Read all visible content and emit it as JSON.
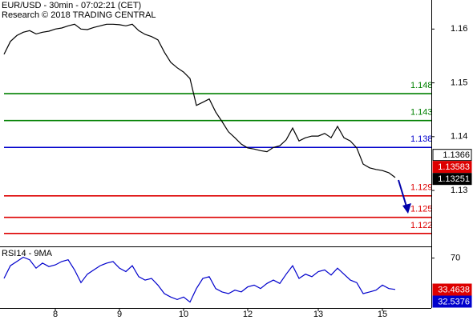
{
  "chart_data": [
    {
      "type": "line",
      "title": "EUR/USD - 30min - 07:02:21 (CET)",
      "subtitle": "Research © 2018 TRADING CENTRAL",
      "series": [
        {
          "color": "#000000",
          "values": [
            1.1553,
            1.1577,
            1.1588,
            1.1594,
            1.1597,
            1.1591,
            1.1594,
            1.1596,
            1.16,
            1.1602,
            1.1606,
            1.1609,
            1.16,
            1.1599,
            1.1603,
            1.1606,
            1.1609,
            1.1609,
            1.1608,
            1.1606,
            1.1609,
            1.1597,
            1.159,
            1.1586,
            1.158,
            1.1557,
            1.1538,
            1.1528,
            1.152,
            1.1508,
            1.1458,
            1.1464,
            1.147,
            1.1446,
            1.1428,
            1.1409,
            1.1398,
            1.1386,
            1.1379,
            1.1377,
            1.1374,
            1.1372,
            1.138,
            1.1383,
            1.1394,
            1.1416,
            1.1392,
            1.1398,
            1.1401,
            1.1401,
            1.1406,
            1.1398,
            1.1419,
            1.1398,
            1.1392,
            1.1379,
            1.1349,
            1.1342,
            1.1339,
            1.1337,
            1.1333,
            1.1324
          ]
        }
      ],
      "ylim": [
        1.1196,
        1.1654
      ],
      "yticks": [
        1.13,
        1.14,
        1.15,
        1.16
      ],
      "levels": [
        {
          "value": 1.148,
          "color": "#008000"
        },
        {
          "value": 1.143,
          "color": "#008000"
        },
        {
          "value": 1.138,
          "color": "#0000cc"
        },
        {
          "value": 1.129,
          "color": "#dd0000"
        },
        {
          "value": 1.125,
          "color": "#dd0000"
        },
        {
          "value": 1.122,
          "color": "#dd0000"
        }
      ],
      "price_labels": [
        {
          "value": 1.1366,
          "color": "#ffffff"
        },
        {
          "value": 1.13583,
          "color": "#dd0000"
        },
        {
          "value": 1.13251,
          "color": "#000000"
        }
      ]
    },
    {
      "type": "line",
      "title": "RSI14 - 9MA",
      "categories": [
        null,
        null,
        null,
        null,
        null,
        null,
        null,
        null,
        "8",
        null,
        null,
        null,
        null,
        null,
        null,
        null,
        null,
        null,
        "9",
        null,
        null,
        null,
        null,
        null,
        null,
        null,
        null,
        null,
        "10",
        null,
        null,
        null,
        null,
        null,
        null,
        null,
        null,
        null,
        "12",
        null,
        null,
        null,
        null,
        null,
        null,
        null,
        null,
        null,
        null,
        "13",
        null,
        null,
        null,
        null,
        null,
        null,
        null,
        null,
        null,
        "15",
        null,
        null
      ],
      "series": [
        {
          "color": "#0000cc",
          "values": [
            49.1,
            62.2,
            66.5,
            70.9,
            68.3,
            59.6,
            64.8,
            61.3,
            63.0,
            66.5,
            68.3,
            57.8,
            44.8,
            53.5,
            57.8,
            62.2,
            64.8,
            66.5,
            59.6,
            56.1,
            62.2,
            50.9,
            47.4,
            49.1,
            42.2,
            33.5,
            30.0,
            27.4,
            30.0,
            24.8,
            38.7,
            49.1,
            50.9,
            38.7,
            35.2,
            33.5,
            37.0,
            35.2,
            40.4,
            42.2,
            38.7,
            43.9,
            47.4,
            43.9,
            53.5,
            62.2,
            49.1,
            53.5,
            50.9,
            56.1,
            57.8,
            52.6,
            59.6,
            53.5,
            47.4,
            44.8,
            33.5,
            35.2,
            37.0,
            42.2,
            38.7,
            37.8
          ]
        }
      ],
      "ylim": [
        18.7,
        82
      ],
      "yticks": [
        70
      ],
      "price_labels": [
        {
          "value": 33.4638,
          "color": "#dd0000"
        },
        {
          "value": 32.5376,
          "color": "#0000cc"
        }
      ]
    }
  ]
}
